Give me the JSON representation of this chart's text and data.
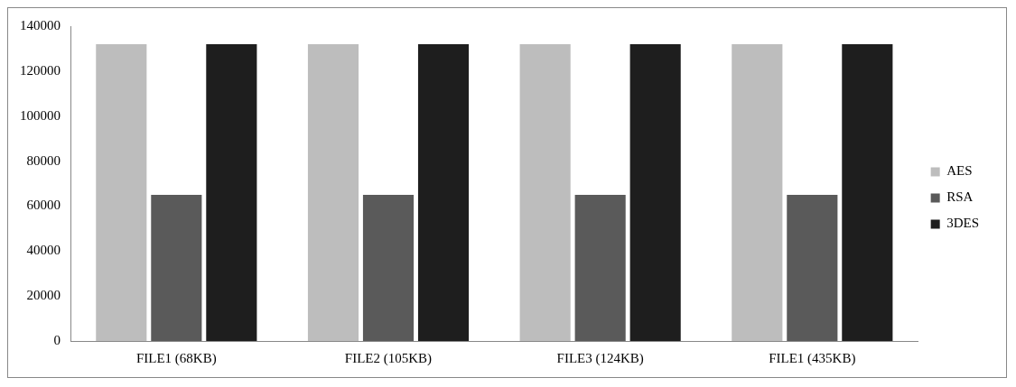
{
  "chart_data": {
    "type": "bar",
    "categories": [
      "FILE1 (68KB)",
      "FILE2 (105KB)",
      "FILE3 (124KB)",
      "FILE1 (435KB)"
    ],
    "series": [
      {
        "name": "AES",
        "color": "#bdbdbd",
        "values": [
          132000,
          132000,
          132000,
          132000
        ]
      },
      {
        "name": "RSA",
        "color": "#5a5a5a",
        "values": [
          65000,
          65000,
          65000,
          65000
        ]
      },
      {
        "name": "3DES",
        "color": "#1e1e1e",
        "values": [
          132000,
          132000,
          132000,
          132000
        ]
      }
    ],
    "ylim": [
      0,
      140000
    ],
    "yticks": [
      0,
      20000,
      40000,
      60000,
      80000,
      100000,
      120000,
      140000
    ],
    "grid": false,
    "legend": "right"
  }
}
